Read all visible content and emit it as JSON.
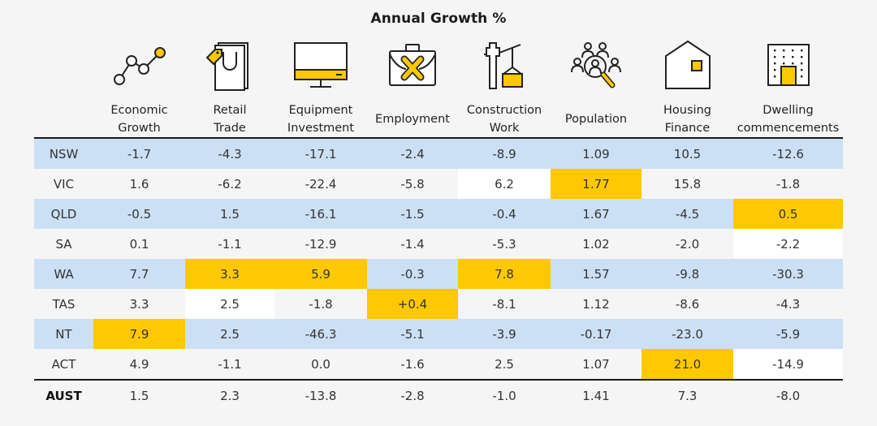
{
  "chart_data": {
    "type": "table",
    "title": "Annual Growth %",
    "columns": [
      {
        "label": "Economic\nGrowth",
        "icon": "line-chart-icon"
      },
      {
        "label": "Retail\nTrade",
        "icon": "shopping-bag-icon"
      },
      {
        "label": "Equipment\nInvestment",
        "icon": "monitor-icon"
      },
      {
        "label": "Employment",
        "icon": "briefcase-icon"
      },
      {
        "label": "Construction\nWork",
        "icon": "crane-icon"
      },
      {
        "label": "Population",
        "icon": "people-search-icon"
      },
      {
        "label": "Housing\nFinance",
        "icon": "house-icon"
      },
      {
        "label": "Dwelling\ncommencements",
        "icon": "building-icon"
      }
    ],
    "rows": [
      {
        "state": "NSW",
        "values": [
          "-1.7",
          "-4.3",
          "-17.1",
          "-2.4",
          "-8.9",
          "1.09",
          "10.5",
          "-12.6"
        ],
        "highlight": [],
        "white": []
      },
      {
        "state": "VIC",
        "values": [
          "1.6",
          "-6.2",
          "-22.4",
          "-5.8",
          "6.2",
          "1.77",
          "15.8",
          "-1.8"
        ],
        "highlight": [
          5
        ],
        "white": [
          4
        ]
      },
      {
        "state": "QLD",
        "values": [
          "-0.5",
          "1.5",
          "-16.1",
          "-1.5",
          "-0.4",
          "1.67",
          "-4.5",
          "0.5"
        ],
        "highlight": [
          7
        ],
        "white": []
      },
      {
        "state": "SA",
        "values": [
          "0.1",
          "-1.1",
          "-12.9",
          "-1.4",
          "-5.3",
          "1.02",
          "-2.0",
          "-2.2"
        ],
        "highlight": [],
        "white": [
          7
        ]
      },
      {
        "state": "WA",
        "values": [
          "7.7",
          "3.3",
          "5.9",
          "-0.3",
          "7.8",
          "1.57",
          "-9.8",
          "-30.3"
        ],
        "highlight": [
          1,
          2,
          4
        ],
        "white": []
      },
      {
        "state": "TAS",
        "values": [
          "3.3",
          "2.5",
          "-1.8",
          "+0.4",
          "-8.1",
          "1.12",
          "-8.6",
          "-4.3"
        ],
        "highlight": [
          3
        ],
        "white": [
          1
        ]
      },
      {
        "state": "NT",
        "values": [
          "7.9",
          "2.5",
          "-46.3",
          "-5.1",
          "-3.9",
          "-0.17",
          "-23.0",
          "-5.9"
        ],
        "highlight": [
          0
        ],
        "white": []
      },
      {
        "state": "ACT",
        "values": [
          "4.9",
          "-1.1",
          "0.0",
          "-1.6",
          "2.5",
          "1.07",
          "21.0",
          "-14.9"
        ],
        "highlight": [
          6
        ],
        "white": [
          7
        ]
      }
    ],
    "total": {
      "state": "AUST",
      "values": [
        "1.5",
        "2.3",
        "-13.8",
        "-2.8",
        "-1.0",
        "1.41",
        "7.3",
        "-8.0"
      ]
    },
    "colors": {
      "highlight": "#ffc800",
      "band": "#cce0f5",
      "background": "#f5f5f5",
      "white": "#ffffff"
    }
  }
}
